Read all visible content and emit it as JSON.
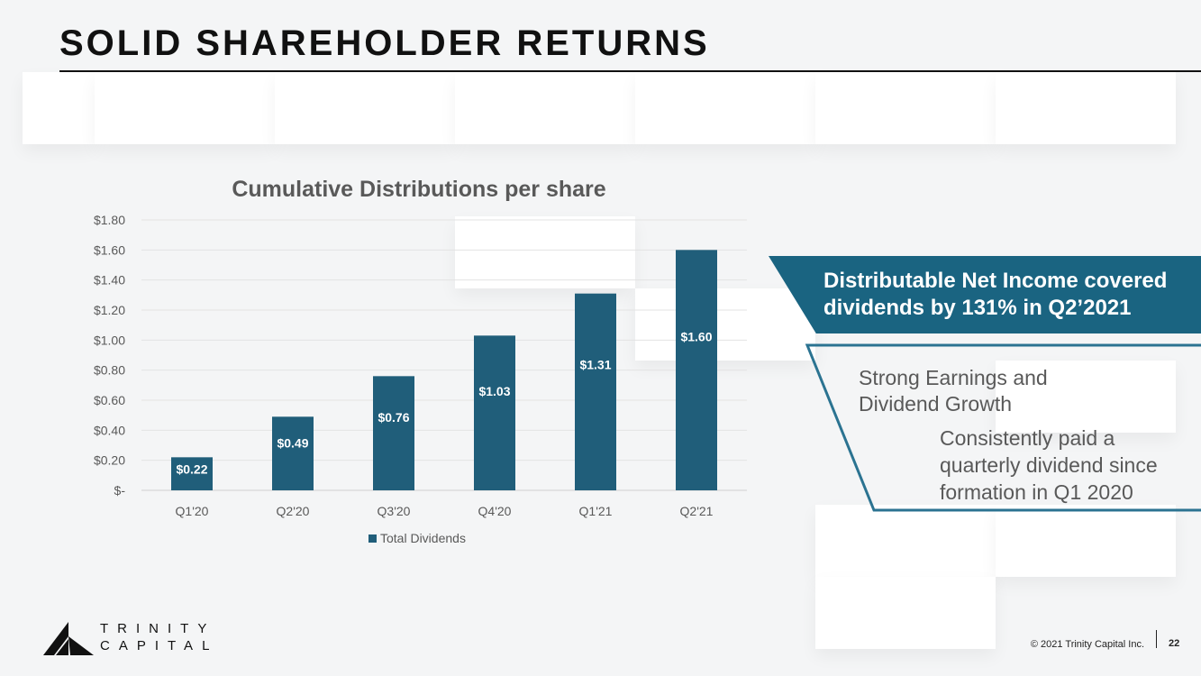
{
  "slide": {
    "title": "SOLID SHAREHOLDER RETURNS",
    "page_number": "22",
    "copyright": "© 2021 Trinity Capital Inc."
  },
  "logo": {
    "line1": "TRINITY",
    "line2": "CAPITAL"
  },
  "callout": {
    "headline": "Distributable Net Income covered dividends by 131% in Q2’2021",
    "subheading": "Strong Earnings and Dividend Growth",
    "detail": "Consistently paid a quarterly dividend since formation in Q1 2020"
  },
  "colors": {
    "bar": "#205e7a",
    "callout": "#1a6481",
    "accent": "#2b7391"
  },
  "chart_data": {
    "type": "bar",
    "title": "Cumulative Distributions per share",
    "categories": [
      "Q1'20",
      "Q2'20",
      "Q3'20",
      "Q4'20",
      "Q1'21",
      "Q2'21"
    ],
    "series": [
      {
        "name": "Total Dividends",
        "values": [
          0.22,
          0.49,
          0.76,
          1.03,
          1.31,
          1.6
        ]
      }
    ],
    "data_labels": [
      "$0.22",
      "$0.49",
      "$0.76",
      "$1.03",
      "$1.31",
      "$1.60"
    ],
    "yticks": [
      "$-",
      "$0.20",
      "$0.40",
      "$0.60",
      "$0.80",
      "$1.00",
      "$1.20",
      "$1.40",
      "$1.60",
      "$1.80"
    ],
    "ylim": [
      0,
      1.8
    ],
    "xlabel": "",
    "ylabel": "",
    "legend": "bottom-center",
    "grid": true
  }
}
